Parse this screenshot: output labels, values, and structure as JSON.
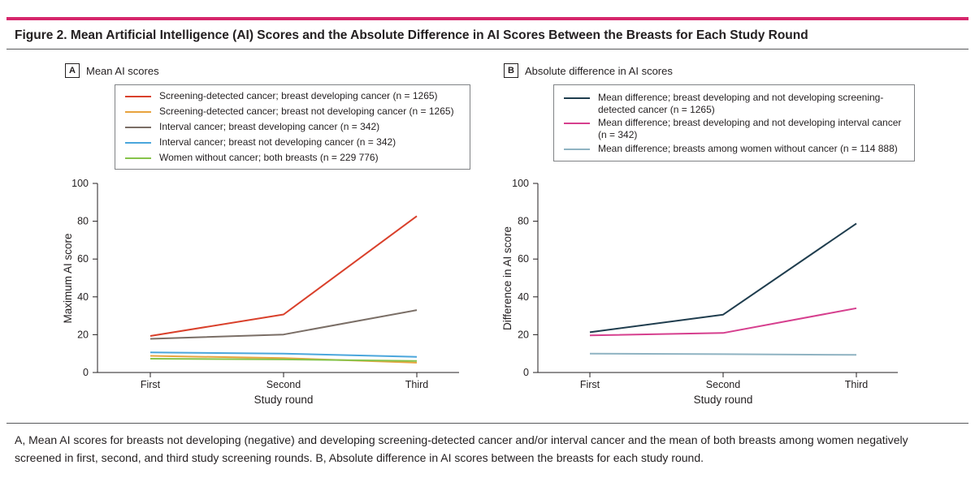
{
  "figure": {
    "title": "Figure 2. Mean Artificial Intelligence (AI) Scores and the Absolute Difference in AI Scores Between the Breasts for Each Study Round",
    "caption": "A, Mean AI scores for breasts not developing (negative) and developing screening-detected cancer and/or interval cancer and the mean of both breasts among women negatively screened in first, second, and third study screening rounds. B, Absolute difference in AI scores between the breasts for each study round."
  },
  "panels": [
    {
      "letter": "A",
      "title": "Mean AI scores"
    },
    {
      "letter": "B",
      "title": "Absolute difference in AI scores"
    }
  ],
  "chart_data": [
    {
      "type": "line",
      "title": "Mean AI scores",
      "xlabel": "Study round",
      "ylabel": "Maximum AI score",
      "categories": [
        "First",
        "Second",
        "Third"
      ],
      "ylim": [
        0,
        100
      ],
      "yticks": [
        "0",
        "20",
        "40",
        "60",
        "80",
        "100"
      ],
      "grid": false,
      "legend_position": "top",
      "series": [
        {
          "name": "Screening-detected cancer; breast developing cancer (n = 1265)",
          "color": "#d9402b",
          "values": [
            19.3,
            30.7,
            82.7
          ]
        },
        {
          "name": "Screening-detected cancer; breast not developing cancer (n = 1265)",
          "color": "#e8a33d",
          "values": [
            8.8,
            7.6,
            5.2
          ]
        },
        {
          "name": "Interval cancer; breast developing cancer (n = 342)",
          "color": "#7a6e66",
          "values": [
            17.8,
            20.1,
            33.0
          ]
        },
        {
          "name": "Interval cancer; breast not developing cancer (n = 342)",
          "color": "#4aa6dc",
          "values": [
            10.6,
            10.0,
            8.3
          ]
        },
        {
          "name": "Women without cancer; both breasts (n = 229 776)",
          "color": "#86c34a",
          "values": [
            7.3,
            6.9,
            6.1
          ]
        }
      ]
    },
    {
      "type": "line",
      "title": "Absolute difference in AI scores",
      "xlabel": "Study round",
      "ylabel": "Difference in AI score",
      "categories": [
        "First",
        "Second",
        "Third"
      ],
      "ylim": [
        0,
        100
      ],
      "yticks": [
        "0",
        "20",
        "40",
        "60",
        "80",
        "100"
      ],
      "grid": false,
      "legend_position": "top",
      "series": [
        {
          "name": "Mean difference; breast developing and not developing screening-detected cancer (n = 1265)",
          "color": "#1f3d4e",
          "values": [
            21.3,
            30.6,
            78.8
          ]
        },
        {
          "name": "Mean difference; breast developing and not developing interval cancer (n = 342)",
          "color": "#d63f8e",
          "values": [
            19.6,
            20.9,
            34.0
          ]
        },
        {
          "name": "Mean difference; breasts among women without cancer (n = 114 888)",
          "color": "#8fb3c2",
          "values": [
            10.0,
            9.7,
            9.3
          ]
        }
      ]
    }
  ]
}
